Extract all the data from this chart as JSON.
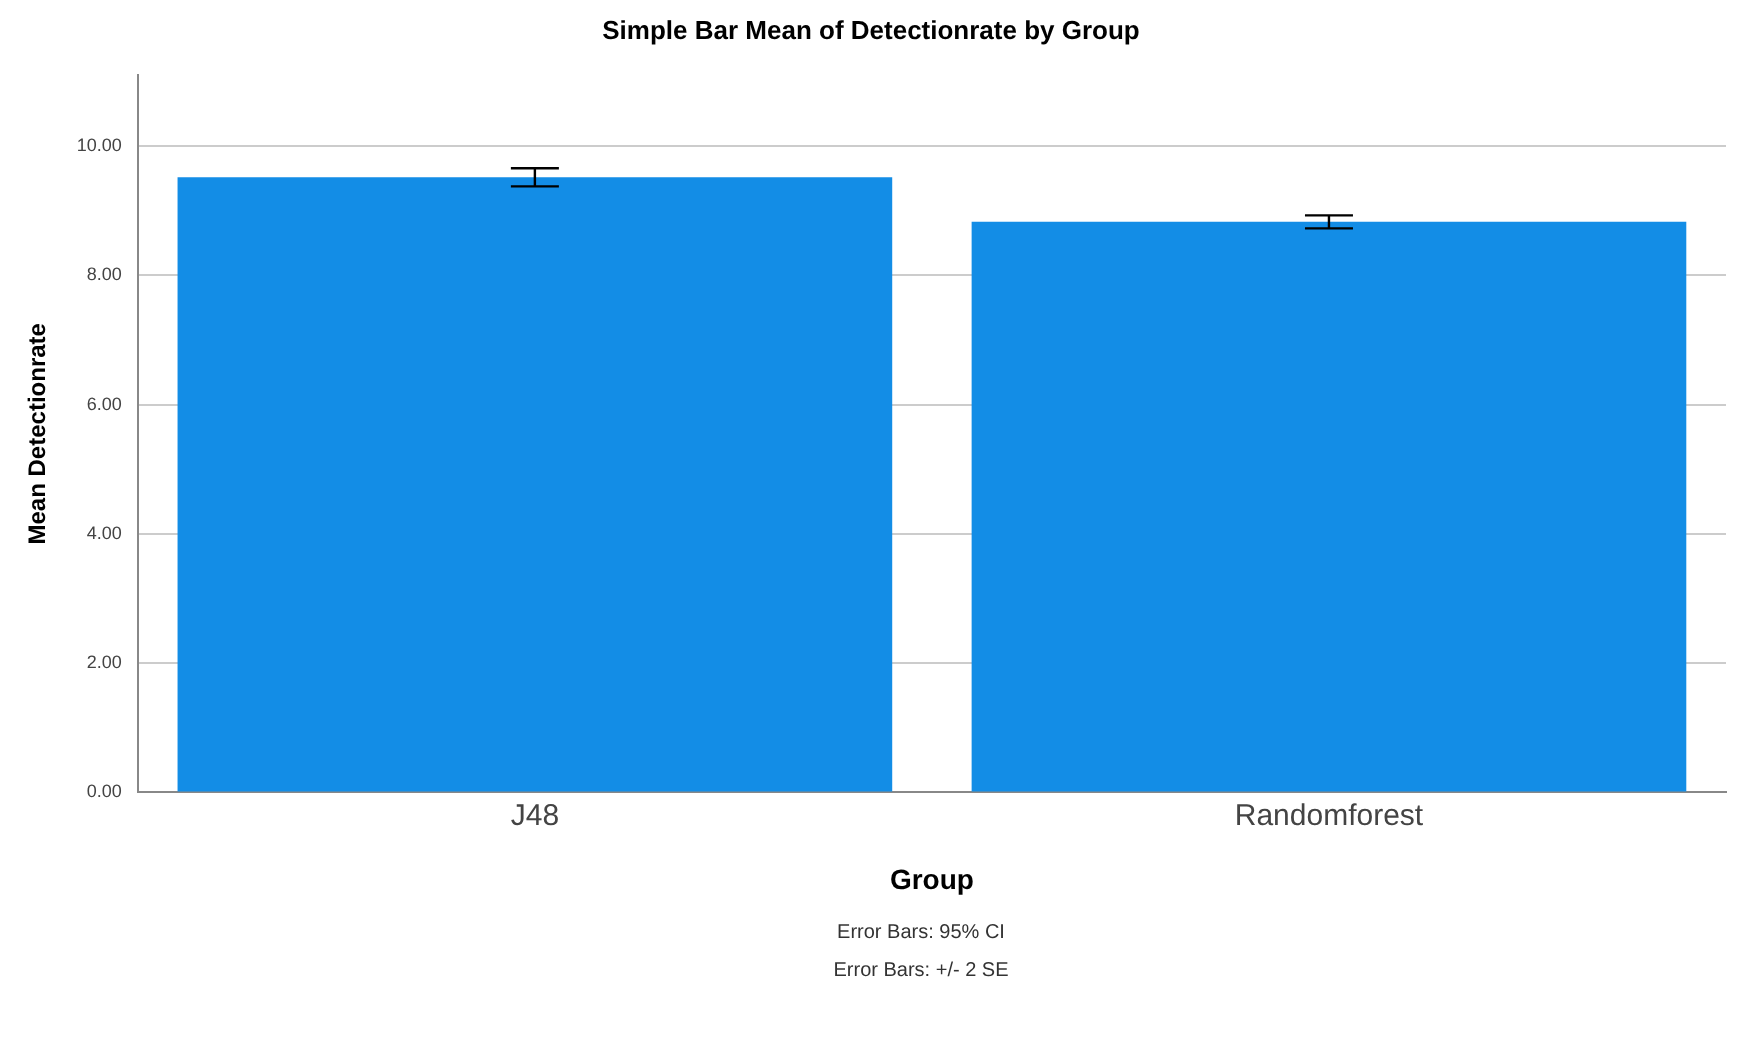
{
  "chart_data": {
    "type": "bar",
    "title": "Simple Bar Mean of Detectionrate by Group",
    "xlabel": "Group",
    "ylabel": "Mean Detectionrate",
    "categories": [
      "J48",
      "Randomforest"
    ],
    "values": [
      9.52,
      8.83
    ],
    "errors": [
      0.14,
      0.1
    ],
    "color": "#138de6",
    "ylim": [
      0,
      11.1
    ],
    "yticks": [
      {
        "value": 0,
        "label": "0.00"
      },
      {
        "value": 2,
        "label": "2.00"
      },
      {
        "value": 4,
        "label": "4.00"
      },
      {
        "value": 6,
        "label": "6.00"
      },
      {
        "value": 8,
        "label": "8.00"
      },
      {
        "value": 10,
        "label": "10.00"
      }
    ],
    "grid": "y",
    "annotations": [
      "Error Bars: 95% CI",
      "Error Bars: +/- 2 SE"
    ]
  }
}
